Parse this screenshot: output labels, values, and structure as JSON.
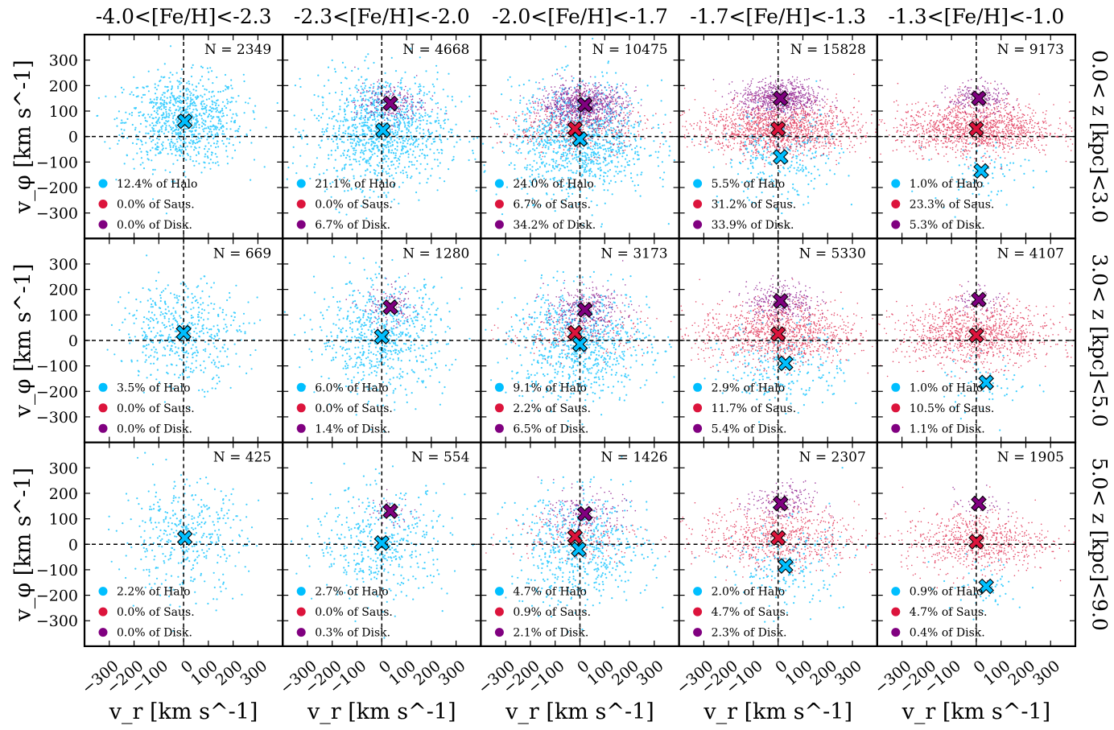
{
  "colors": {
    "halo": "#00bfff",
    "saus": "#dc143c",
    "disk": "#800080",
    "frame": "#000000"
  },
  "chart_data": {
    "type": "scatter",
    "xlabel": "v_r [km s^-1]",
    "ylabel": "v_φ [km s^-1]",
    "xlim": [
      -400,
      400
    ],
    "ylim": [
      -400,
      400
    ],
    "x_ticks": [
      "−300",
      "−200",
      "−100",
      "0",
      "100",
      "200",
      "300"
    ],
    "y_ticks": [
      "300",
      "200",
      "100",
      "0",
      "−100",
      "−200",
      "−300"
    ],
    "grid": false,
    "reference_lines": {
      "x": 0,
      "y": 0
    },
    "columns": [
      "-4.0<[Fe/H]<-2.3",
      "-2.3<[Fe/H]<-2.0",
      "-2.0<[Fe/H]<-1.7",
      "-1.7<[Fe/H]<-1.3",
      "-1.3<[Fe/H]<-1.0"
    ],
    "rows": [
      "0.0< z [kpc]<3.0",
      "3.0< z [kpc]<5.0",
      "5.0< z [kpc]<9.0"
    ],
    "series": [
      {
        "name": "Halo",
        "color": "#00bfff"
      },
      {
        "name": "Saus.",
        "color": "#dc143c"
      },
      {
        "name": "Disk.",
        "color": "#800080"
      }
    ],
    "panels": [
      [
        {
          "n": "N = 2349",
          "legend": [
            "12.4% of Halo",
            "0.0% of Saus.",
            "0.0% of Disk."
          ],
          "means": {
            "halo": [
              5,
              60
            ]
          },
          "clouds": {
            "halo": {
              "mx": 0,
              "my": 60,
              "sx": 120,
              "sy": 90,
              "count": 900
            }
          }
        },
        {
          "n": "N = 4668",
          "legend": [
            "21.1% of Halo",
            "0.0% of Saus.",
            "6.7% of Disk."
          ],
          "means": {
            "halo": [
              5,
              25
            ],
            "disk": [
              35,
              130
            ]
          },
          "clouds": {
            "halo": {
              "mx": 0,
              "my": 25,
              "sx": 135,
              "sy": 110,
              "count": 1100
            },
            "disk": {
              "mx": 30,
              "my": 130,
              "sx": 70,
              "sy": 40,
              "count": 250
            }
          }
        },
        {
          "n": "N = 10475",
          "legend": [
            "24.0% of Halo",
            "6.7% of Saus.",
            "34.2% of Disk."
          ],
          "means": {
            "halo": [
              0,
              -10
            ],
            "saus": [
              -20,
              30
            ],
            "disk": [
              20,
              125
            ]
          },
          "clouds": {
            "halo": {
              "mx": 0,
              "my": -10,
              "sx": 140,
              "sy": 110,
              "count": 1100
            },
            "saus": {
              "mx": -20,
              "my": 30,
              "sx": 150,
              "sy": 50,
              "count": 400
            },
            "disk": {
              "mx": 15,
              "my": 125,
              "sx": 85,
              "sy": 40,
              "count": 900
            }
          }
        },
        {
          "n": "N = 15828",
          "legend": [
            "5.5% of Halo",
            "31.2% of Saus.",
            "33.9% of Disk."
          ],
          "means": {
            "halo": [
              10,
              -80
            ],
            "saus": [
              0,
              30
            ],
            "disk": [
              10,
              150
            ]
          },
          "clouds": {
            "halo": {
              "mx": 10,
              "my": -80,
              "sx": 120,
              "sy": 90,
              "count": 300
            },
            "saus": {
              "mx": 0,
              "my": 30,
              "sx": 160,
              "sy": 50,
              "count": 1400
            },
            "disk": {
              "mx": 10,
              "my": 150,
              "sx": 80,
              "sy": 35,
              "count": 800
            }
          }
        },
        {
          "n": "N = 9173",
          "legend": [
            "1.0% of Halo",
            "23.3% of Saus.",
            "5.3% of Disk."
          ],
          "means": {
            "halo": [
              20,
              -135
            ],
            "saus": [
              0,
              30
            ],
            "disk": [
              10,
              150
            ]
          },
          "clouds": {
            "halo": {
              "mx": 20,
              "my": -135,
              "sx": 100,
              "sy": 60,
              "count": 80
            },
            "saus": {
              "mx": 0,
              "my": 30,
              "sx": 160,
              "sy": 50,
              "count": 1300
            },
            "disk": {
              "mx": 10,
              "my": 150,
              "sx": 60,
              "sy": 30,
              "count": 250
            }
          }
        }
      ],
      [
        {
          "n": "N = 669",
          "legend": [
            "3.5% of Halo",
            "0.0% of Saus.",
            "0.0% of Disk."
          ],
          "means": {
            "halo": [
              0,
              30
            ]
          },
          "clouds": {
            "halo": {
              "mx": 0,
              "my": 30,
              "sx": 120,
              "sy": 100,
              "count": 500
            }
          }
        },
        {
          "n": "N = 1280",
          "legend": [
            "6.0% of Halo",
            "0.0% of Saus.",
            "1.4% of Disk."
          ],
          "means": {
            "halo": [
              0,
              15
            ],
            "disk": [
              35,
              130
            ]
          },
          "clouds": {
            "halo": {
              "mx": 0,
              "my": 15,
              "sx": 130,
              "sy": 110,
              "count": 700
            },
            "disk": {
              "mx": 35,
              "my": 130,
              "sx": 60,
              "sy": 40,
              "count": 120
            }
          }
        },
        {
          "n": "N = 3173",
          "legend": [
            "9.1% of Halo",
            "2.2% of Saus.",
            "6.5% of Disk."
          ],
          "means": {
            "halo": [
              0,
              -15
            ],
            "saus": [
              -20,
              30
            ],
            "disk": [
              20,
              120
            ]
          },
          "clouds": {
            "halo": {
              "mx": 0,
              "my": -15,
              "sx": 140,
              "sy": 110,
              "count": 800
            },
            "saus": {
              "mx": -20,
              "my": 30,
              "sx": 140,
              "sy": 50,
              "count": 200
            },
            "disk": {
              "mx": 20,
              "my": 120,
              "sx": 80,
              "sy": 45,
              "count": 350
            }
          }
        },
        {
          "n": "N = 5330",
          "legend": [
            "2.9% of Halo",
            "11.7% of Saus.",
            "5.4% of Disk."
          ],
          "means": {
            "halo": [
              30,
              -90
            ],
            "saus": [
              0,
              25
            ],
            "disk": [
              10,
              155
            ]
          },
          "clouds": {
            "halo": {
              "mx": 30,
              "my": -90,
              "sx": 120,
              "sy": 90,
              "count": 250
            },
            "saus": {
              "mx": 0,
              "my": 25,
              "sx": 160,
              "sy": 60,
              "count": 1100
            },
            "disk": {
              "mx": 10,
              "my": 155,
              "sx": 70,
              "sy": 40,
              "count": 300
            }
          }
        },
        {
          "n": "N = 4107",
          "legend": [
            "1.0% of Halo",
            "10.5% of Saus.",
            "1.1% of Disk."
          ],
          "means": {
            "halo": [
              40,
              -165
            ],
            "saus": [
              0,
              20
            ],
            "disk": [
              10,
              160
            ]
          },
          "clouds": {
            "halo": {
              "mx": 40,
              "my": -165,
              "sx": 90,
              "sy": 60,
              "count": 60
            },
            "saus": {
              "mx": 0,
              "my": 20,
              "sx": 160,
              "sy": 60,
              "count": 1100
            },
            "disk": {
              "mx": 10,
              "my": 160,
              "sx": 50,
              "sy": 30,
              "count": 90
            }
          }
        }
      ],
      [
        {
          "n": "N = 425",
          "legend": [
            "2.2% of Halo",
            "0.0% of Saus.",
            "0.0% of Disk."
          ],
          "means": {
            "halo": [
              5,
              25
            ]
          },
          "clouds": {
            "halo": {
              "mx": 0,
              "my": 25,
              "sx": 125,
              "sy": 110,
              "count": 400
            }
          }
        },
        {
          "n": "N = 554",
          "legend": [
            "2.7% of Halo",
            "0.0% of Saus.",
            "0.3% of Disk."
          ],
          "means": {
            "halo": [
              0,
              5
            ],
            "disk": [
              35,
              130
            ]
          },
          "clouds": {
            "halo": {
              "mx": 0,
              "my": 5,
              "sx": 135,
              "sy": 110,
              "count": 450
            },
            "disk": {
              "mx": 35,
              "my": 130,
              "sx": 50,
              "sy": 30,
              "count": 40
            }
          }
        },
        {
          "n": "N = 1426",
          "legend": [
            "4.7% of Halo",
            "0.9% of Saus.",
            "2.1% of Disk."
          ],
          "means": {
            "halo": [
              -5,
              -20
            ],
            "saus": [
              -20,
              30
            ],
            "disk": [
              20,
              120
            ]
          },
          "clouds": {
            "halo": {
              "mx": 0,
              "my": -20,
              "sx": 140,
              "sy": 110,
              "count": 600
            },
            "saus": {
              "mx": -20,
              "my": 30,
              "sx": 140,
              "sy": 50,
              "count": 150
            },
            "disk": {
              "mx": 20,
              "my": 120,
              "sx": 80,
              "sy": 45,
              "count": 200
            }
          }
        },
        {
          "n": "N = 2307",
          "legend": [
            "2.0% of Halo",
            "4.7% of Saus.",
            "2.3% of Disk."
          ],
          "means": {
            "halo": [
              30,
              -85
            ],
            "saus": [
              0,
              25
            ],
            "disk": [
              10,
              160
            ]
          },
          "clouds": {
            "halo": {
              "mx": 30,
              "my": -85,
              "sx": 120,
              "sy": 90,
              "count": 200
            },
            "saus": {
              "mx": 0,
              "my": 25,
              "sx": 160,
              "sy": 60,
              "count": 700
            },
            "disk": {
              "mx": 10,
              "my": 160,
              "sx": 70,
              "sy": 40,
              "count": 180
            }
          }
        },
        {
          "n": "N = 1905",
          "legend": [
            "0.9% of Halo",
            "4.7% of Saus.",
            "0.4% of Disk."
          ],
          "means": {
            "halo": [
              40,
              -165
            ],
            "saus": [
              0,
              10
            ],
            "disk": [
              10,
              160
            ]
          },
          "clouds": {
            "halo": {
              "mx": 40,
              "my": -165,
              "sx": 90,
              "sy": 60,
              "count": 50
            },
            "saus": {
              "mx": 0,
              "my": 10,
              "sx": 150,
              "sy": 60,
              "count": 700
            },
            "disk": {
              "mx": 10,
              "my": 160,
              "sx": 50,
              "sy": 30,
              "count": 40
            }
          }
        }
      ]
    ]
  }
}
